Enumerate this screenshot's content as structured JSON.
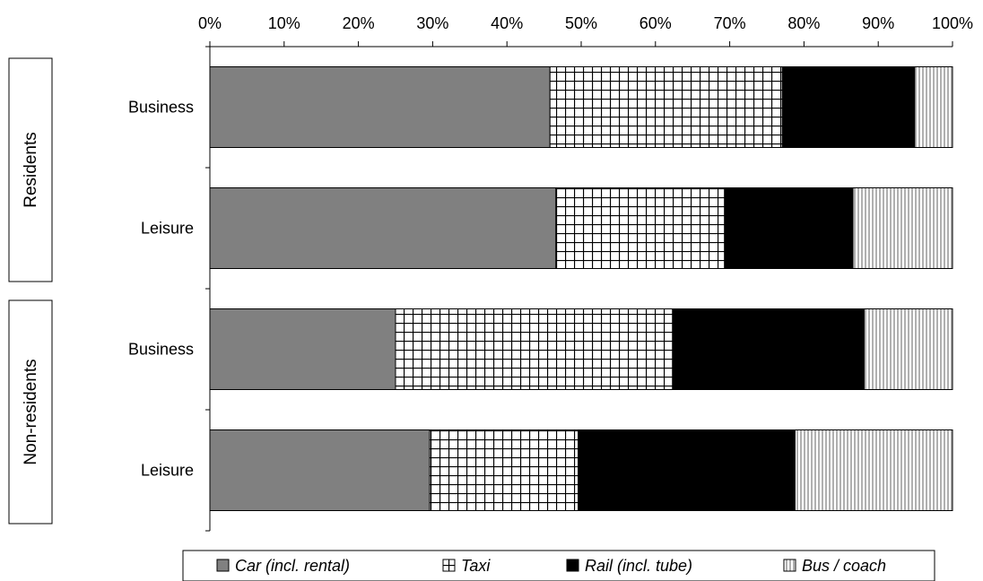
{
  "chart_data": {
    "type": "bar",
    "orientation": "horizontal",
    "stacked": "percent",
    "xlim": [
      0,
      100
    ],
    "x_ticks": [
      "0%",
      "10%",
      "20%",
      "30%",
      "40%",
      "50%",
      "60%",
      "70%",
      "80%",
      "90%",
      "100%"
    ],
    "x_tick_values": [
      0,
      10,
      20,
      30,
      40,
      50,
      60,
      70,
      80,
      90,
      100
    ],
    "groups": [
      {
        "label": "Residents",
        "categories": [
          "Business",
          "Leisure"
        ]
      },
      {
        "label": "Non-residents",
        "categories": [
          "Business",
          "Leisure"
        ]
      }
    ],
    "categories": [
      "Business",
      "Leisure",
      "Business",
      "Leisure"
    ],
    "series": [
      {
        "name": "Car (incl. rental)",
        "values": [
          45.8,
          46.6,
          25.0,
          29.6
        ],
        "pattern": "solid",
        "color": "#808080"
      },
      {
        "name": "Taxi",
        "values": [
          31.3,
          22.7,
          37.3,
          20.0
        ],
        "pattern": "grid",
        "color": "#000000"
      },
      {
        "name": "Rail (incl. tube)",
        "values": [
          17.8,
          17.3,
          25.8,
          29.2
        ],
        "pattern": "solid",
        "color": "#000000"
      },
      {
        "name": "Bus / coach",
        "values": [
          5.1,
          13.4,
          11.9,
          21.2
        ],
        "pattern": "vertical-lines",
        "color": "#b0b0b0"
      }
    ],
    "legend_position": "bottom",
    "grid": false
  }
}
